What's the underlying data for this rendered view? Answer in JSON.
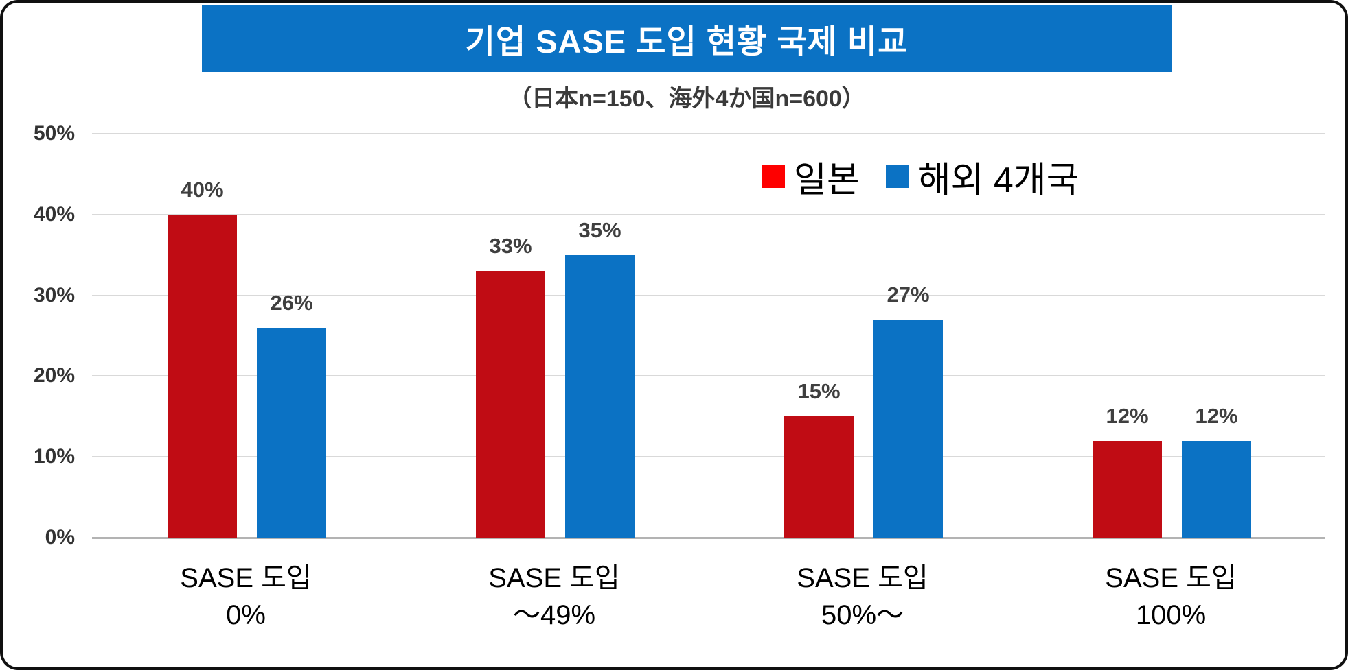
{
  "header": {
    "title": "기업 SASE 도입 현황 국제 비교",
    "subtitle": "（日本n=150、海外4か国n=600）",
    "title_bg_color": "#0b72c4",
    "title_text_color": "#ffffff"
  },
  "legend": {
    "items": [
      {
        "label": "일본",
        "color": "#fe0000"
      },
      {
        "label": "해외 4개국",
        "color": "#0b72c4"
      }
    ]
  },
  "chart_data": {
    "type": "bar",
    "title": "기업 SASE 도입 현황 국제 비교",
    "subtitle": "（日本n=150、海外4か国n=600）",
    "categories": [
      "SASE 도입\n0%",
      "SASE 도입\n～49%",
      "SASE 도입\n50%～",
      "SASE 도입\n100%"
    ],
    "series": [
      {
        "name": "일본",
        "legend_color": "#fe0000",
        "bar_color": "#c00c14",
        "values": [
          40,
          33,
          15,
          12
        ]
      },
      {
        "name": "해외 4개국",
        "legend_color": "#0b72c4",
        "bar_color": "#0b72c4",
        "values": [
          26,
          35,
          27,
          12
        ]
      }
    ],
    "data_labels": true,
    "data_label_suffix": "%",
    "xlabel": "",
    "ylabel": "",
    "ylim": [
      0,
      50
    ],
    "yticks": [
      0,
      10,
      20,
      30,
      40,
      50
    ],
    "ytick_suffix": "%",
    "grid": true,
    "legend_position": "top-right"
  }
}
